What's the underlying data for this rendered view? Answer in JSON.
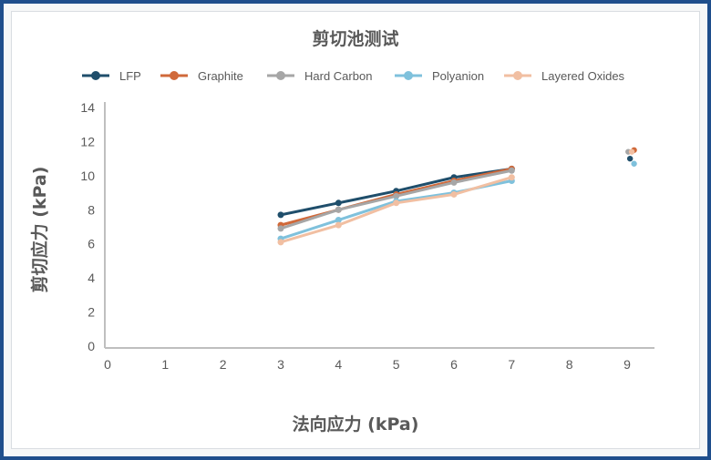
{
  "chart_data": {
    "type": "line",
    "title": "剪切池测试",
    "xlabel": "法向应力 (kPa)",
    "ylabel": "剪切应力 (kPa)",
    "xlim": [
      0,
      9.5
    ],
    "ylim": [
      0,
      14
    ],
    "xticks": [
      "0",
      "1",
      "2",
      "3",
      "4",
      "5",
      "6",
      "7",
      "8",
      "9"
    ],
    "yticks": [
      "0",
      "2",
      "4",
      "6",
      "8",
      "10",
      "12",
      "14"
    ],
    "grid": false,
    "legend_position": "top",
    "x": [
      3,
      4,
      5,
      6,
      7
    ],
    "series": [
      {
        "name": "LFP",
        "color": "#1f4e6b",
        "values": [
          7.7,
          8.4,
          9.1,
          9.9,
          10.4
        ],
        "extra_point": [
          9.05,
          11.0
        ]
      },
      {
        "name": "Graphite",
        "color": "#d0693a",
        "values": [
          7.1,
          8.0,
          8.9,
          9.7,
          10.4
        ],
        "extra_point": [
          9.12,
          11.5
        ]
      },
      {
        "name": "Hard Carbon",
        "color": "#a6a6a6",
        "values": [
          6.9,
          8.0,
          8.8,
          9.6,
          10.3
        ],
        "extra_point": [
          9.02,
          11.4
        ]
      },
      {
        "name": "Polyanion",
        "color": "#7fc1dc",
        "values": [
          6.3,
          7.4,
          8.5,
          9.0,
          9.7
        ],
        "extra_point": [
          9.12,
          10.7
        ]
      },
      {
        "name": "Layered Oxides",
        "color": "#f1bfa2",
        "values": [
          6.1,
          7.1,
          8.4,
          8.9,
          9.9
        ],
        "extra_point": [
          9.08,
          11.4
        ]
      }
    ]
  }
}
